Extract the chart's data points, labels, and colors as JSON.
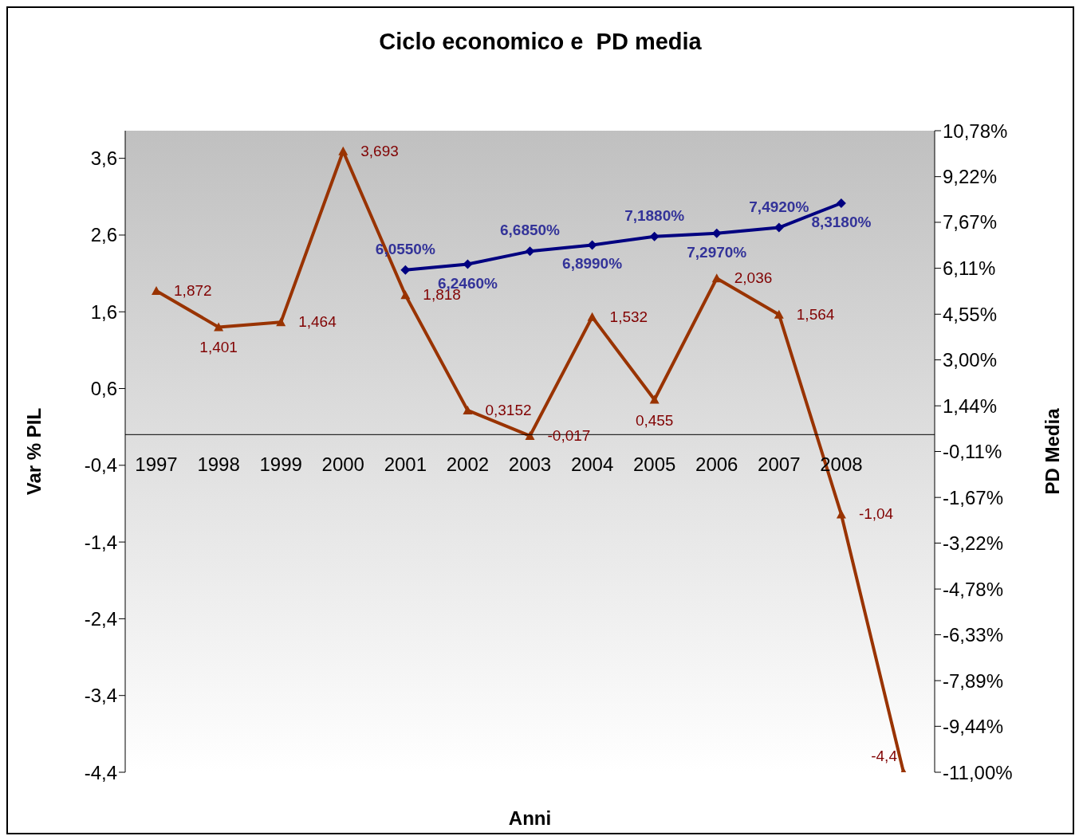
{
  "chart_data": {
    "type": "line",
    "title": "Ciclo economico e  PD media",
    "xlabel": "Anni",
    "ylabel": "Var % PIL",
    "y2label": "PD  Media",
    "categories": [
      "1997",
      "1998",
      "1999",
      "2000",
      "2001",
      "2002",
      "2003",
      "2004",
      "2005",
      "2006",
      "2007",
      "2008",
      null
    ],
    "series": [
      {
        "color": "#993300",
        "marker": "triangle",
        "values": [
          1.872,
          1.401,
          1.464,
          3.693,
          1.818,
          0.3152,
          -0.017,
          1.532,
          0.455,
          2.036,
          1.564,
          -1.04,
          -4.4
        ],
        "value_labels": [
          "1,872",
          "1,401",
          "1,464",
          "3,693",
          "1,818",
          "0,3152",
          "-0,017",
          "1,532",
          "0,455",
          "2,036",
          "1,564",
          "-1,04",
          "-4,4"
        ]
      },
      {
        "color": "#000080",
        "marker": "diamond",
        "axis": "y2",
        "values": [
          null,
          null,
          null,
          null,
          6.055,
          6.246,
          6.685,
          6.899,
          7.188,
          7.297,
          7.492,
          8.318,
          null
        ],
        "value_labels": [
          null,
          null,
          null,
          null,
          "6,0550%",
          "6,2460%",
          "6,6850%",
          "6,8990%",
          "7,1880%",
          "7,2970%",
          "7,4920%",
          "8,3180%",
          null
        ]
      }
    ],
    "ylim": [
      -4.4,
      3.96
    ],
    "yticks": [
      {
        "value": -4.4,
        "label": "-4,4"
      },
      {
        "value": -3.4,
        "label": "-3,4"
      },
      {
        "value": -2.4,
        "label": "-2,4"
      },
      {
        "value": -1.4,
        "label": "-1,4"
      },
      {
        "value": -0.4,
        "label": "-0,4"
      },
      {
        "value": 0.6,
        "label": "0,6"
      },
      {
        "value": 1.6,
        "label": "1,6"
      },
      {
        "value": 2.6,
        "label": "2,6"
      },
      {
        "value": 3.6,
        "label": "3,6"
      }
    ],
    "y2lim": [
      -11,
      10.78
    ],
    "y2ticks": [
      {
        "value": -11,
        "label": "-11,00%"
      },
      {
        "value": -9.44,
        "label": "-9,44%"
      },
      {
        "value": -7.89,
        "label": "-7,89%"
      },
      {
        "value": -6.33,
        "label": "-6,33%"
      },
      {
        "value": -4.78,
        "label": "-4,78%"
      },
      {
        "value": -3.22,
        "label": "-3,22%"
      },
      {
        "value": -1.67,
        "label": "-1,67%"
      },
      {
        "value": -0.11,
        "label": "-0,11%"
      },
      {
        "value": 1.44,
        "label": "1,44%"
      },
      {
        "value": 3.0,
        "label": "3,00%"
      },
      {
        "value": 4.55,
        "label": "4,55%"
      },
      {
        "value": 6.11,
        "label": "6,11%"
      },
      {
        "value": 7.67,
        "label": "7,67%"
      },
      {
        "value": 9.22,
        "label": "9,22%"
      },
      {
        "value": 10.78,
        "label": "10,78%"
      }
    ],
    "grid": false,
    "legend": false
  }
}
